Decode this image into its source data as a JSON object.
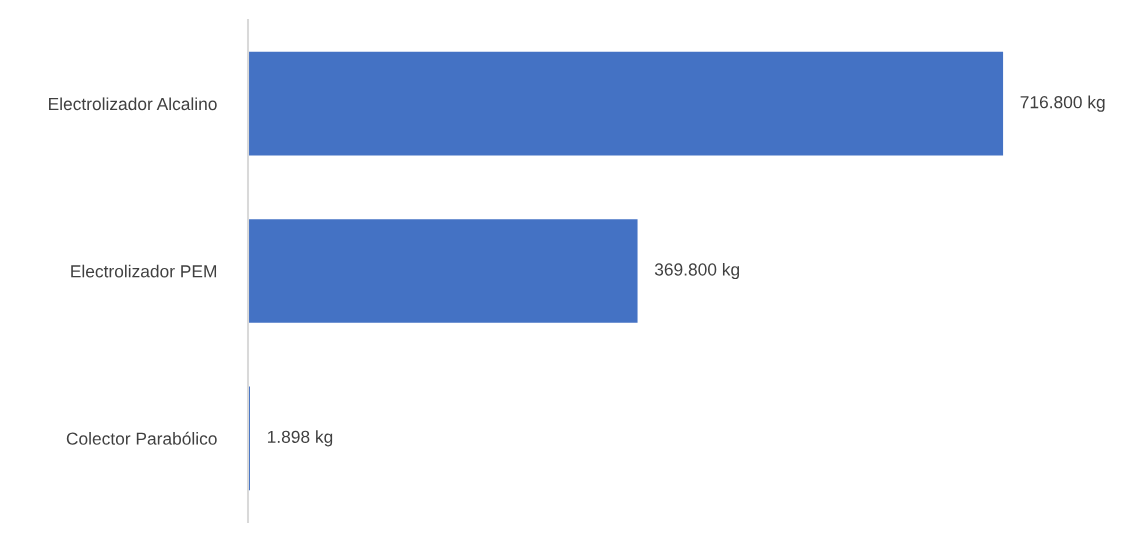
{
  "chart_data": {
    "type": "bar",
    "orientation": "horizontal",
    "categories": [
      "Electrolizador Alcalino",
      "Electrolizador PEM",
      "Colector Parabólico"
    ],
    "values": [
      716800,
      369800,
      1898
    ],
    "value_labels": [
      "716.800 kg",
      "369.800 kg",
      "1.898 kg"
    ],
    "color": "#4472c4",
    "grid": false,
    "legend": false
  }
}
